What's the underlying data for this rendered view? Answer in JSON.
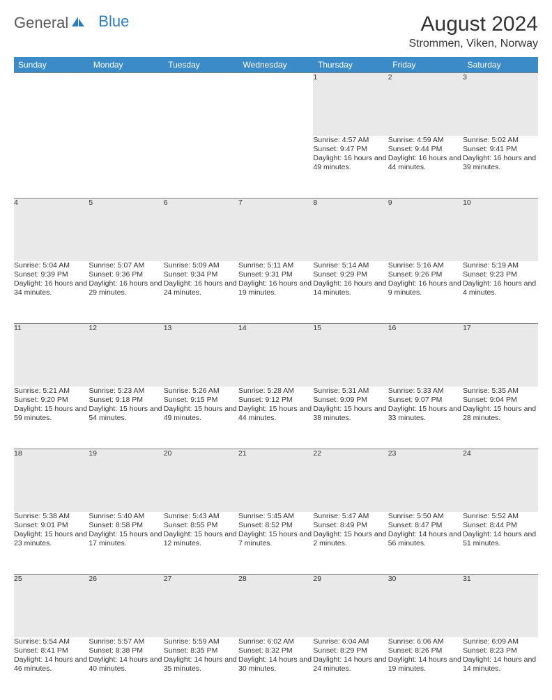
{
  "logo": {
    "text_a": "General",
    "text_b": "Blue"
  },
  "title": "August 2024",
  "location": "Strommen, Viken, Norway",
  "colors": {
    "header_bg": "#3b8bc9",
    "header_text": "#ffffff",
    "daynum_bg": "#e9e9e9",
    "border": "#808080",
    "text": "#333333",
    "logo_blue": "#2d7dc2"
  },
  "weekdays": [
    "Sunday",
    "Monday",
    "Tuesday",
    "Wednesday",
    "Thursday",
    "Friday",
    "Saturday"
  ],
  "weeks": [
    {
      "nums": [
        "",
        "",
        "",
        "",
        "1",
        "2",
        "3"
      ],
      "cells": [
        null,
        null,
        null,
        null,
        {
          "sunrise": "4:57 AM",
          "sunset": "9:47 PM",
          "daylight": "16 hours and 49 minutes."
        },
        {
          "sunrise": "4:59 AM",
          "sunset": "9:44 PM",
          "daylight": "16 hours and 44 minutes."
        },
        {
          "sunrise": "5:02 AM",
          "sunset": "9:41 PM",
          "daylight": "16 hours and 39 minutes."
        }
      ]
    },
    {
      "nums": [
        "4",
        "5",
        "6",
        "7",
        "8",
        "9",
        "10"
      ],
      "cells": [
        {
          "sunrise": "5:04 AM",
          "sunset": "9:39 PM",
          "daylight": "16 hours and 34 minutes."
        },
        {
          "sunrise": "5:07 AM",
          "sunset": "9:36 PM",
          "daylight": "16 hours and 29 minutes."
        },
        {
          "sunrise": "5:09 AM",
          "sunset": "9:34 PM",
          "daylight": "16 hours and 24 minutes."
        },
        {
          "sunrise": "5:11 AM",
          "sunset": "9:31 PM",
          "daylight": "16 hours and 19 minutes."
        },
        {
          "sunrise": "5:14 AM",
          "sunset": "9:29 PM",
          "daylight": "16 hours and 14 minutes."
        },
        {
          "sunrise": "5:16 AM",
          "sunset": "9:26 PM",
          "daylight": "16 hours and 9 minutes."
        },
        {
          "sunrise": "5:19 AM",
          "sunset": "9:23 PM",
          "daylight": "16 hours and 4 minutes."
        }
      ]
    },
    {
      "nums": [
        "11",
        "12",
        "13",
        "14",
        "15",
        "16",
        "17"
      ],
      "cells": [
        {
          "sunrise": "5:21 AM",
          "sunset": "9:20 PM",
          "daylight": "15 hours and 59 minutes."
        },
        {
          "sunrise": "5:23 AM",
          "sunset": "9:18 PM",
          "daylight": "15 hours and 54 minutes."
        },
        {
          "sunrise": "5:26 AM",
          "sunset": "9:15 PM",
          "daylight": "15 hours and 49 minutes."
        },
        {
          "sunrise": "5:28 AM",
          "sunset": "9:12 PM",
          "daylight": "15 hours and 44 minutes."
        },
        {
          "sunrise": "5:31 AM",
          "sunset": "9:09 PM",
          "daylight": "15 hours and 38 minutes."
        },
        {
          "sunrise": "5:33 AM",
          "sunset": "9:07 PM",
          "daylight": "15 hours and 33 minutes."
        },
        {
          "sunrise": "5:35 AM",
          "sunset": "9:04 PM",
          "daylight": "15 hours and 28 minutes."
        }
      ]
    },
    {
      "nums": [
        "18",
        "19",
        "20",
        "21",
        "22",
        "23",
        "24"
      ],
      "cells": [
        {
          "sunrise": "5:38 AM",
          "sunset": "9:01 PM",
          "daylight": "15 hours and 23 minutes."
        },
        {
          "sunrise": "5:40 AM",
          "sunset": "8:58 PM",
          "daylight": "15 hours and 17 minutes."
        },
        {
          "sunrise": "5:43 AM",
          "sunset": "8:55 PM",
          "daylight": "15 hours and 12 minutes."
        },
        {
          "sunrise": "5:45 AM",
          "sunset": "8:52 PM",
          "daylight": "15 hours and 7 minutes."
        },
        {
          "sunrise": "5:47 AM",
          "sunset": "8:49 PM",
          "daylight": "15 hours and 2 minutes."
        },
        {
          "sunrise": "5:50 AM",
          "sunset": "8:47 PM",
          "daylight": "14 hours and 56 minutes."
        },
        {
          "sunrise": "5:52 AM",
          "sunset": "8:44 PM",
          "daylight": "14 hours and 51 minutes."
        }
      ]
    },
    {
      "nums": [
        "25",
        "26",
        "27",
        "28",
        "29",
        "30",
        "31"
      ],
      "cells": [
        {
          "sunrise": "5:54 AM",
          "sunset": "8:41 PM",
          "daylight": "14 hours and 46 minutes."
        },
        {
          "sunrise": "5:57 AM",
          "sunset": "8:38 PM",
          "daylight": "14 hours and 40 minutes."
        },
        {
          "sunrise": "5:59 AM",
          "sunset": "8:35 PM",
          "daylight": "14 hours and 35 minutes."
        },
        {
          "sunrise": "6:02 AM",
          "sunset": "8:32 PM",
          "daylight": "14 hours and 30 minutes."
        },
        {
          "sunrise": "6:04 AM",
          "sunset": "8:29 PM",
          "daylight": "14 hours and 24 minutes."
        },
        {
          "sunrise": "6:06 AM",
          "sunset": "8:26 PM",
          "daylight": "14 hours and 19 minutes."
        },
        {
          "sunrise": "6:09 AM",
          "sunset": "8:23 PM",
          "daylight": "14 hours and 14 minutes."
        }
      ]
    }
  ],
  "labels": {
    "sunrise": "Sunrise: ",
    "sunset": "Sunset: ",
    "daylight": "Daylight: "
  }
}
